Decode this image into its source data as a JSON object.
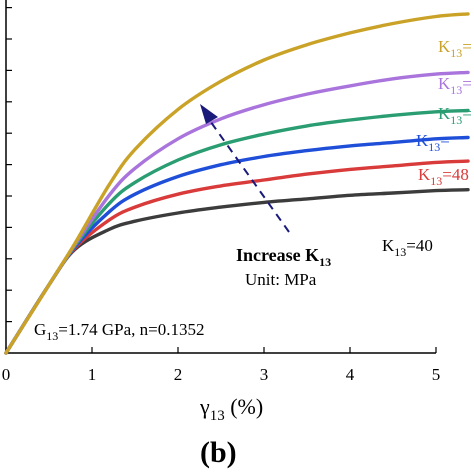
{
  "chart_data": {
    "type": "line",
    "xlabel": "γ13 (%)",
    "xlabel_main": "γ",
    "xlabel_sub": "13",
    "xlabel_unit": " (%)",
    "xlim": [
      0,
      5
    ],
    "x_ticks": [
      "0",
      "1",
      "2",
      "3",
      "4",
      "5"
    ],
    "grid": false,
    "panel_label": "(b)",
    "series": [
      {
        "name": "K13=40",
        "label_main": "K",
        "label_sub": "13",
        "label_rest": "=40",
        "color": "#3c3c3c",
        "x": [
          0,
          0.5,
          0.8,
          1.2,
          1.5,
          2,
          2.5,
          3,
          3.5,
          4,
          4.5,
          5
        ],
        "y": [
          0,
          0.58,
          0.88,
          1.05,
          1.12,
          1.19,
          1.24,
          1.28,
          1.31,
          1.34,
          1.36,
          1.38
        ]
      },
      {
        "name": "K13=48",
        "label_main": "K",
        "label_sub": "13",
        "label_rest": "=48",
        "color": "#d93a3a",
        "x": [
          0,
          0.5,
          0.8,
          1.2,
          1.5,
          2,
          2.5,
          3,
          3.5,
          4,
          4.5,
          5
        ],
        "y": [
          0,
          0.58,
          0.89,
          1.13,
          1.24,
          1.35,
          1.42,
          1.47,
          1.52,
          1.56,
          1.59,
          1.62
        ]
      },
      {
        "name": "K13=",
        "label_main": "K",
        "label_sub": "13",
        "label_rest": "=",
        "color": "#1f4fd8",
        "x": [
          0,
          0.5,
          0.8,
          1.2,
          1.5,
          2,
          2.5,
          3,
          3.5,
          4,
          4.5,
          5
        ],
        "y": [
          0,
          0.58,
          0.9,
          1.2,
          1.35,
          1.5,
          1.6,
          1.67,
          1.72,
          1.76,
          1.79,
          1.82
        ]
      },
      {
        "name": "K13=",
        "label_main": "K",
        "label_sub": "13",
        "label_rest": "=",
        "color": "#2a9d72",
        "x": [
          0,
          0.5,
          0.8,
          1.2,
          1.5,
          2,
          2.5,
          3,
          3.5,
          4,
          4.5,
          5
        ],
        "y": [
          0,
          0.58,
          0.91,
          1.27,
          1.45,
          1.64,
          1.77,
          1.86,
          1.93,
          1.98,
          2.02,
          2.05
        ]
      },
      {
        "name": "K13=",
        "label_main": "K",
        "label_sub": "13",
        "label_rest": "=",
        "color": "#a974dc",
        "x": [
          0,
          0.5,
          0.8,
          1.2,
          1.5,
          2,
          2.5,
          3,
          3.5,
          4,
          4.5,
          5
        ],
        "y": [
          0,
          0.58,
          0.92,
          1.34,
          1.57,
          1.82,
          1.99,
          2.11,
          2.2,
          2.27,
          2.33,
          2.37
        ]
      },
      {
        "name": "K13=",
        "label_main": "K",
        "label_sub": "13",
        "label_rest": "=",
        "color": "#c9a227",
        "x": [
          0,
          0.5,
          0.8,
          1.2,
          1.5,
          2,
          2.5,
          3,
          3.5,
          4,
          4.5,
          5
        ],
        "y": [
          0,
          0.58,
          0.93,
          1.43,
          1.73,
          2.07,
          2.31,
          2.49,
          2.62,
          2.72,
          2.8,
          2.86
        ]
      }
    ],
    "annotations": {
      "arrow_label_main": "Increase K",
      "arrow_label_sub": "13",
      "unit_text": "Unit: MPa",
      "params_g": "G",
      "params_g_sub": "13",
      "params_rest": "=1.74 GPa, n=0.1352"
    }
  }
}
